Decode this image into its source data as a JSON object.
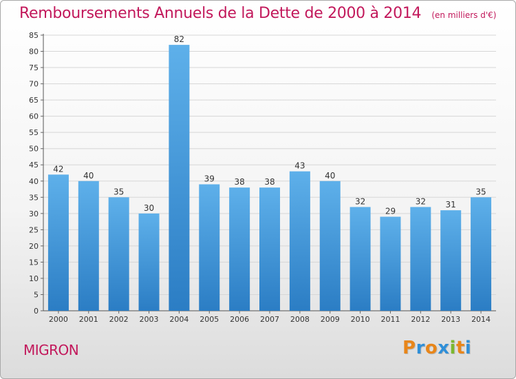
{
  "title": "Remboursements Annuels de la Dette de 2000 à 2014",
  "unit_note": "(en milliers d'€)",
  "place": "MIGRON",
  "brand": {
    "text": "Proxiti",
    "letters": [
      "P",
      "r",
      "o",
      "x",
      "i",
      "t",
      "i"
    ],
    "colors": [
      "#e8861a",
      "#2f8fd8",
      "#e8861a",
      "#2f8fd8",
      "#7cb82f",
      "#e8861a",
      "#2f8fd8"
    ]
  },
  "colors": {
    "title": "#c2185b",
    "bar_light": "#5eb0ea",
    "bar_dark": "#2b7dc4",
    "grid": "#d6d6d6"
  },
  "chart_data": {
    "type": "bar",
    "categories": [
      "2000",
      "2001",
      "2002",
      "2003",
      "2004",
      "2005",
      "2006",
      "2007",
      "2008",
      "2009",
      "2010",
      "2011",
      "2012",
      "2013",
      "2014"
    ],
    "values": [
      42,
      40,
      35,
      30,
      82,
      39,
      38,
      38,
      43,
      40,
      32,
      29,
      32,
      31,
      35
    ],
    "ylim": [
      0,
      85
    ],
    "yticks": [
      0,
      5,
      10,
      15,
      20,
      25,
      30,
      35,
      40,
      45,
      50,
      55,
      60,
      65,
      70,
      75,
      80,
      85
    ],
    "grid": true,
    "data_labels": true
  }
}
